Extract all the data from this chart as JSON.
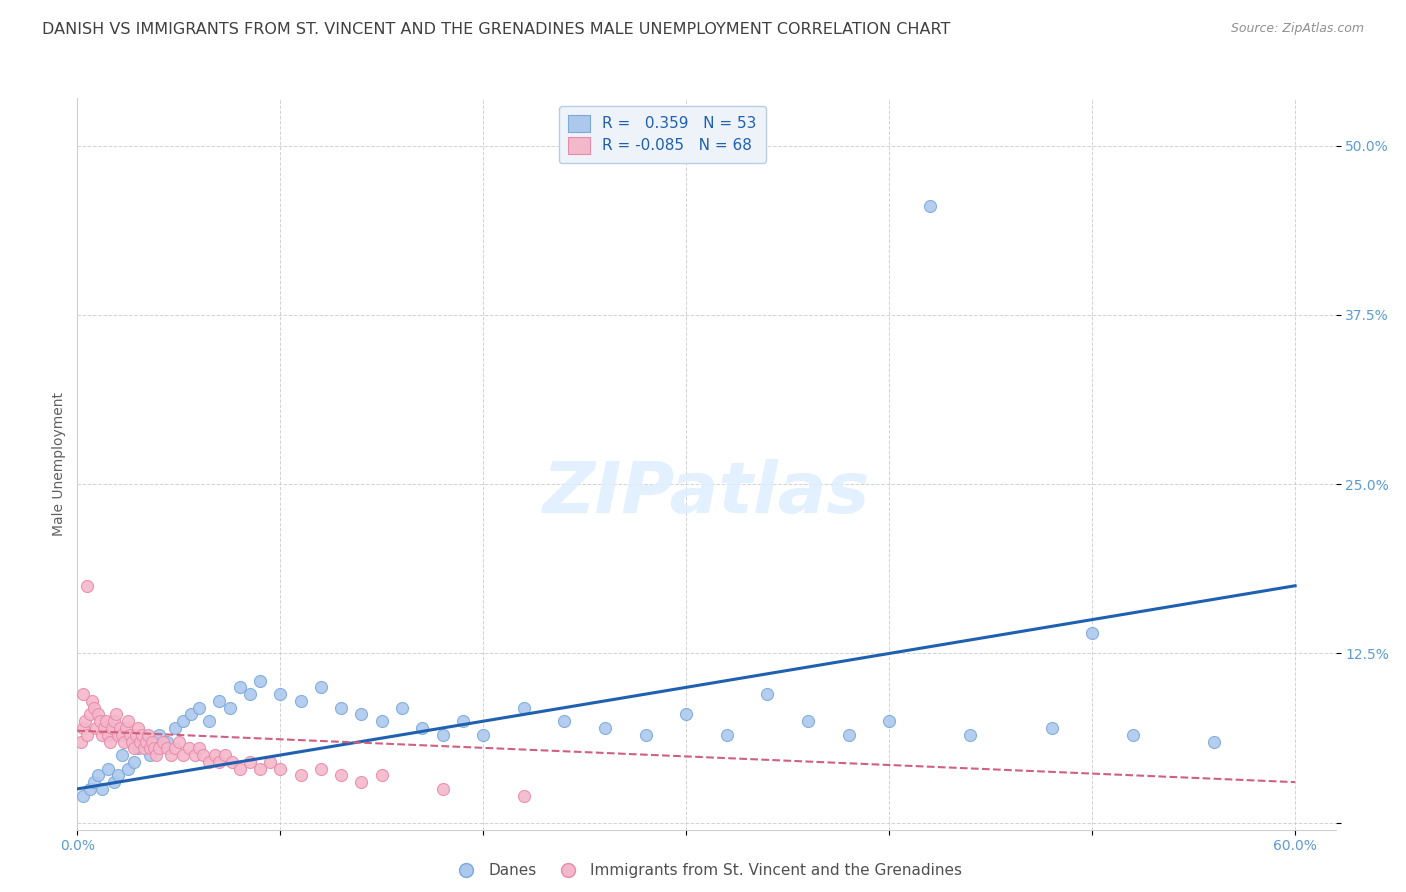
{
  "title": "DANISH VS IMMIGRANTS FROM ST. VINCENT AND THE GRENADINES MALE UNEMPLOYMENT CORRELATION CHART",
  "source": "Source: ZipAtlas.com",
  "ylabel": "Male Unemployment",
  "xlim": [
    0.0,
    0.62
  ],
  "ylim": [
    -0.005,
    0.535
  ],
  "yticks": [
    0.0,
    0.125,
    0.25,
    0.375,
    0.5
  ],
  "ytick_labels": [
    "",
    "12.5%",
    "25.0%",
    "37.5%",
    "50.0%"
  ],
  "xticks": [
    0.0,
    0.1,
    0.2,
    0.3,
    0.4,
    0.5,
    0.6
  ],
  "xtick_labels": [
    "0.0%",
    "",
    "",
    "",
    "",
    "",
    "60.0%"
  ],
  "danes_color": "#adc8ed",
  "danes_edge_color": "#7aaada",
  "immigrants_color": "#f4b8cb",
  "immigrants_edge_color": "#e88aaa",
  "danes_line_color": "#2060b0",
  "immigrants_line_color": "#d06080",
  "background_color": "#ffffff",
  "watermark": "ZIPatlas",
  "R_danes": 0.359,
  "N_danes": 53,
  "R_immigrants": -0.085,
  "N_immigrants": 68,
  "marker_size": 75,
  "title_fontsize": 11.5,
  "axis_label_fontsize": 10,
  "tick_fontsize": 10,
  "legend_fontsize": 11,
  "watermark_fontsize": 52,
  "tick_label_color": "#5b9bd5",
  "grid_color": "#c8c8c8",
  "title_color": "#404040",
  "source_color": "#909090",
  "danes_x": [
    0.003,
    0.006,
    0.008,
    0.01,
    0.012,
    0.015,
    0.018,
    0.02,
    0.022,
    0.025,
    0.028,
    0.03,
    0.033,
    0.036,
    0.04,
    0.044,
    0.048,
    0.052,
    0.056,
    0.06,
    0.065,
    0.07,
    0.075,
    0.08,
    0.085,
    0.09,
    0.1,
    0.11,
    0.12,
    0.13,
    0.14,
    0.15,
    0.16,
    0.17,
    0.18,
    0.19,
    0.2,
    0.22,
    0.24,
    0.26,
    0.28,
    0.3,
    0.32,
    0.34,
    0.36,
    0.38,
    0.4,
    0.44,
    0.48,
    0.52,
    0.42,
    0.5,
    0.56
  ],
  "danes_y": [
    0.02,
    0.025,
    0.03,
    0.035,
    0.025,
    0.04,
    0.03,
    0.035,
    0.05,
    0.04,
    0.045,
    0.055,
    0.06,
    0.05,
    0.065,
    0.06,
    0.07,
    0.075,
    0.08,
    0.085,
    0.075,
    0.09,
    0.085,
    0.1,
    0.095,
    0.105,
    0.095,
    0.09,
    0.1,
    0.085,
    0.08,
    0.075,
    0.085,
    0.07,
    0.065,
    0.075,
    0.065,
    0.085,
    0.075,
    0.07,
    0.065,
    0.08,
    0.065,
    0.095,
    0.075,
    0.065,
    0.075,
    0.065,
    0.07,
    0.065,
    0.455,
    0.14,
    0.06
  ],
  "immigrants_x": [
    0.002,
    0.003,
    0.004,
    0.005,
    0.006,
    0.007,
    0.008,
    0.009,
    0.01,
    0.011,
    0.012,
    0.013,
    0.014,
    0.015,
    0.016,
    0.017,
    0.018,
    0.019,
    0.02,
    0.021,
    0.022,
    0.023,
    0.024,
    0.025,
    0.026,
    0.027,
    0.028,
    0.029,
    0.03,
    0.031,
    0.032,
    0.033,
    0.034,
    0.035,
    0.036,
    0.037,
    0.038,
    0.039,
    0.04,
    0.042,
    0.044,
    0.046,
    0.048,
    0.05,
    0.052,
    0.055,
    0.058,
    0.06,
    0.062,
    0.065,
    0.068,
    0.07,
    0.073,
    0.076,
    0.08,
    0.085,
    0.09,
    0.095,
    0.1,
    0.11,
    0.12,
    0.13,
    0.14,
    0.15,
    0.18,
    0.22,
    0.005,
    0.003
  ],
  "immigrants_y": [
    0.06,
    0.07,
    0.075,
    0.065,
    0.08,
    0.09,
    0.085,
    0.07,
    0.08,
    0.075,
    0.065,
    0.07,
    0.075,
    0.065,
    0.06,
    0.07,
    0.075,
    0.08,
    0.065,
    0.07,
    0.065,
    0.06,
    0.07,
    0.075,
    0.065,
    0.06,
    0.055,
    0.065,
    0.07,
    0.06,
    0.065,
    0.055,
    0.06,
    0.065,
    0.055,
    0.06,
    0.055,
    0.05,
    0.055,
    0.06,
    0.055,
    0.05,
    0.055,
    0.06,
    0.05,
    0.055,
    0.05,
    0.055,
    0.05,
    0.045,
    0.05,
    0.045,
    0.05,
    0.045,
    0.04,
    0.045,
    0.04,
    0.045,
    0.04,
    0.035,
    0.04,
    0.035,
    0.03,
    0.035,
    0.025,
    0.02,
    0.175,
    0.095
  ],
  "danes_trendline_x": [
    0.0,
    0.6
  ],
  "danes_trendline_y": [
    0.025,
    0.175
  ],
  "immigrants_trendline_x": [
    0.0,
    0.6
  ],
  "immigrants_trendline_y": [
    0.068,
    0.03
  ]
}
